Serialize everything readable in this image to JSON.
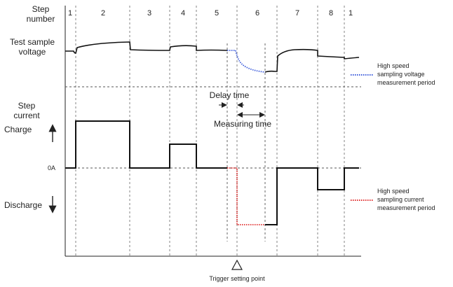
{
  "labels": {
    "step_number_line1": "Step",
    "step_number_line2": "number",
    "test_sample_line1": "Test sample",
    "test_sample_line2": "voltage",
    "step_current_line1": "Step",
    "step_current_line2": "current",
    "charge": "Charge",
    "zero": "0A",
    "discharge": "Discharge",
    "delay_time": "Delay time",
    "measuring_time": "Measuring time",
    "trigger_point": "Trigger setting point"
  },
  "steps": [
    "1",
    "2",
    "3",
    "4",
    "5",
    "6",
    "7",
    "8",
    "1"
  ],
  "legend": {
    "voltage": {
      "line1": "High speed",
      "line2": "sampling voltage",
      "line3": "measurement period",
      "color": "#3b5bdb"
    },
    "current": {
      "line1": "High speed",
      "line2": "sampling current",
      "line3": "measurement period",
      "color": "#e03131"
    }
  },
  "colors": {
    "trace": "#111111",
    "voltage_sampling": "#3b5bdb",
    "current_sampling": "#e03131",
    "guides": "#555555"
  },
  "icons": {
    "trigger": "triangle-up-outline-icon",
    "charge": "arrow-up-icon",
    "discharge": "arrow-down-icon",
    "delay": "arrow-right-icon",
    "measuring": "double-arrow-icon"
  }
}
